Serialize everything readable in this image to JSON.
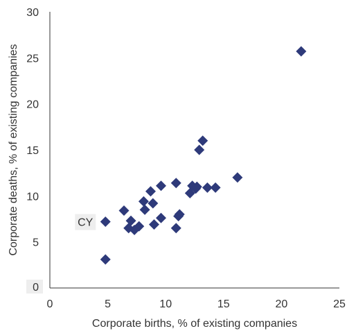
{
  "chart_data": {
    "type": "scatter",
    "title": "",
    "xlabel": "Corporate births, % of existing companies",
    "ylabel": "Corporate deaths, % of existing companies",
    "xlim": [
      0,
      25
    ],
    "ylim": [
      0,
      30
    ],
    "x_ticks": [
      "0",
      "5",
      "10",
      "15",
      "20",
      "25"
    ],
    "y_ticks": [
      "0",
      "5",
      "10",
      "15",
      "20",
      "25",
      "30"
    ],
    "grid": false,
    "marker": "diamond",
    "color": "#2E3A7A",
    "points": [
      {
        "x": 4.8,
        "y": 7.2
      },
      {
        "x": 4.8,
        "y": 3.1
      },
      {
        "x": 6.4,
        "y": 8.4
      },
      {
        "x": 6.8,
        "y": 6.5
      },
      {
        "x": 7.0,
        "y": 7.3
      },
      {
        "x": 7.3,
        "y": 6.3
      },
      {
        "x": 7.7,
        "y": 6.7
      },
      {
        "x": 8.1,
        "y": 9.4
      },
      {
        "x": 8.2,
        "y": 8.5
      },
      {
        "x": 8.7,
        "y": 10.5
      },
      {
        "x": 8.9,
        "y": 9.2
      },
      {
        "x": 9.0,
        "y": 6.9
      },
      {
        "x": 9.6,
        "y": 11.1
      },
      {
        "x": 9.6,
        "y": 7.6
      },
      {
        "x": 10.9,
        "y": 11.4
      },
      {
        "x": 10.9,
        "y": 6.5
      },
      {
        "x": 11.1,
        "y": 7.8
      },
      {
        "x": 11.2,
        "y": 8.0
      },
      {
        "x": 12.1,
        "y": 10.3
      },
      {
        "x": 12.3,
        "y": 11.1
      },
      {
        "x": 12.6,
        "y": 10.8
      },
      {
        "x": 12.7,
        "y": 11.0
      },
      {
        "x": 12.9,
        "y": 15.0
      },
      {
        "x": 13.2,
        "y": 16.0
      },
      {
        "x": 13.6,
        "y": 10.9
      },
      {
        "x": 14.3,
        "y": 10.9
      },
      {
        "x": 16.2,
        "y": 12.0
      },
      {
        "x": 21.7,
        "y": 25.7
      }
    ],
    "annotations": [
      {
        "text": "CY",
        "x": 4.8,
        "y": 7.2
      }
    ]
  }
}
